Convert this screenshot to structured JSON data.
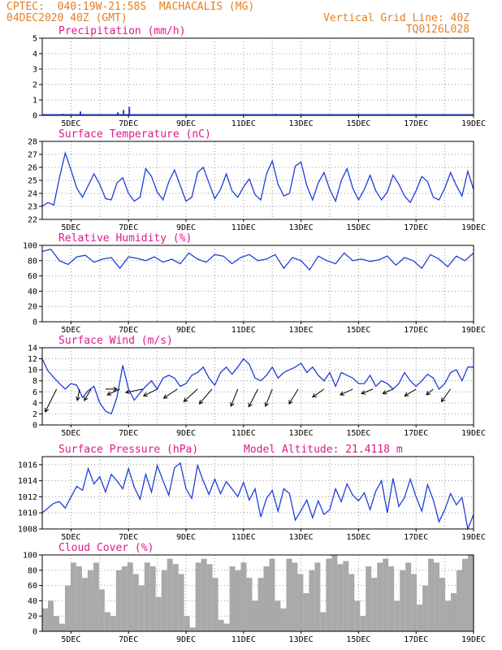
{
  "header": {
    "left1": "CPTEC:  040:19W-21:58S  MACHACALIS (MG)",
    "left2": "04DEC2020 40Z (GMT)",
    "right1": "Vertical Grid Line: 40Z",
    "right2": "TQ0126L028"
  },
  "colors": {
    "header": "#e67e22",
    "title": "#e0188a",
    "line": "#1f3fd8",
    "cloud": "#a9a9a9"
  },
  "x_labels": [
    "5DEC",
    "7DEC",
    "9DEC",
    "11DEC",
    "13DEC",
    "15DEC",
    "17DEC",
    "19DEC"
  ],
  "chart_data": [
    {
      "type": "bar",
      "title": "Precipitation (mm/h)",
      "ylim": [
        0,
        5
      ],
      "yticks": [
        "0",
        "1",
        "2",
        "3",
        "4",
        "5"
      ],
      "x_range": [
        "04DEC",
        "19DEC"
      ],
      "x": [
        4.7,
        5.3,
        6.6,
        6.8,
        7.0,
        12.1
      ],
      "values": [
        0.1,
        0.25,
        0.2,
        0.35,
        0.55,
        0.1
      ]
    },
    {
      "type": "line",
      "title": "Surface Temperature (nC)",
      "ylim": [
        22,
        28
      ],
      "yticks": [
        "22",
        "23",
        "24",
        "25",
        "26",
        "27",
        "28"
      ],
      "x": [
        4.0,
        4.2,
        4.4,
        4.6,
        4.8,
        5.0,
        5.2,
        5.4,
        5.6,
        5.8,
        6.0,
        6.2,
        6.4,
        6.6,
        6.8,
        7.0,
        7.2,
        7.4,
        7.6,
        7.8,
        8.0,
        8.2,
        8.4,
        8.6,
        8.8,
        9.0,
        9.2,
        9.4,
        9.6,
        9.8,
        10.0,
        10.2,
        10.4,
        10.6,
        10.8,
        11.0,
        11.2,
        11.4,
        11.6,
        11.8,
        12.0,
        12.2,
        12.4,
        12.6,
        12.8,
        13.0,
        13.2,
        13.4,
        13.6,
        13.8,
        14.0,
        14.2,
        14.4,
        14.6,
        14.8,
        15.0,
        15.2,
        15.4,
        15.6,
        15.8,
        16.0,
        16.2,
        16.4,
        16.6,
        16.8,
        17.0,
        17.2,
        17.4,
        17.6,
        17.8,
        18.0,
        18.2,
        18.4,
        18.6,
        18.8,
        19.0
      ],
      "values": [
        23.0,
        23.3,
        23.1,
        25.2,
        27.1,
        25.8,
        24.4,
        23.7,
        24.6,
        25.5,
        24.7,
        23.6,
        23.5,
        24.8,
        25.2,
        24.0,
        23.4,
        23.7,
        25.9,
        25.3,
        24.1,
        23.5,
        24.9,
        25.8,
        24.6,
        23.4,
        23.7,
        25.6,
        26.0,
        24.8,
        23.6,
        24.3,
        25.5,
        24.2,
        23.7,
        24.5,
        25.1,
        23.9,
        23.5,
        25.5,
        26.5,
        24.7,
        23.8,
        24.0,
        26.1,
        26.4,
        24.6,
        23.5,
        24.8,
        25.6,
        24.3,
        23.4,
        25.0,
        25.9,
        24.4,
        23.5,
        24.3,
        25.4,
        24.2,
        23.5,
        24.1,
        25.4,
        24.7,
        23.8,
        23.3,
        24.2,
        25.3,
        24.9,
        23.7,
        23.5,
        24.4,
        25.6,
        24.6,
        23.8,
        25.7,
        24.3
      ]
    },
    {
      "type": "line",
      "title": "Relative Humidity (%)",
      "ylim": [
        0,
        100
      ],
      "yticks": [
        "0",
        "20",
        "40",
        "60",
        "80",
        "100"
      ],
      "x": [
        4.0,
        4.3,
        4.6,
        4.9,
        5.2,
        5.5,
        5.8,
        6.1,
        6.4,
        6.7,
        7.0,
        7.3,
        7.6,
        7.9,
        8.2,
        8.5,
        8.8,
        9.1,
        9.4,
        9.7,
        10.0,
        10.3,
        10.6,
        10.9,
        11.2,
        11.5,
        11.8,
        12.1,
        12.4,
        12.7,
        13.0,
        13.3,
        13.6,
        13.9,
        14.2,
        14.5,
        14.8,
        15.1,
        15.4,
        15.7,
        16.0,
        16.3,
        16.6,
        16.9,
        17.2,
        17.5,
        17.8,
        18.1,
        18.4,
        18.7,
        19.0
      ],
      "values": [
        92,
        95,
        80,
        75,
        85,
        87,
        78,
        82,
        84,
        70,
        85,
        83,
        80,
        85,
        78,
        82,
        76,
        90,
        82,
        78,
        88,
        86,
        76,
        84,
        88,
        80,
        82,
        88,
        70,
        84,
        80,
        68,
        86,
        80,
        76,
        90,
        80,
        82,
        79,
        81,
        86,
        74,
        84,
        80,
        70,
        88,
        82,
        72,
        86,
        80,
        90
      ]
    },
    {
      "type": "line",
      "title": "Surface Wind (m/s)",
      "ylim": [
        0,
        14
      ],
      "yticks": [
        "0",
        "2",
        "4",
        "6",
        "8",
        "10",
        "12",
        "14"
      ],
      "x": [
        4.0,
        4.2,
        4.4,
        4.6,
        4.8,
        5.0,
        5.2,
        5.4,
        5.6,
        5.8,
        6.0,
        6.2,
        6.4,
        6.6,
        6.8,
        7.0,
        7.2,
        7.4,
        7.6,
        7.8,
        8.0,
        8.2,
        8.4,
        8.6,
        8.8,
        9.0,
        9.2,
        9.4,
        9.6,
        9.8,
        10.0,
        10.2,
        10.4,
        10.6,
        10.8,
        11.0,
        11.2,
        11.4,
        11.6,
        11.8,
        12.0,
        12.2,
        12.4,
        12.6,
        12.8,
        13.0,
        13.2,
        13.4,
        13.6,
        13.8,
        14.0,
        14.2,
        14.4,
        14.6,
        14.8,
        15.0,
        15.2,
        15.4,
        15.6,
        15.8,
        16.0,
        16.2,
        16.4,
        16.6,
        16.8,
        17.0,
        17.2,
        17.4,
        17.6,
        17.8,
        18.0,
        18.2,
        18.4,
        18.6,
        18.8,
        19.0
      ],
      "values": [
        12.0,
        9.8,
        8.6,
        7.5,
        6.5,
        7.5,
        7.2,
        5.0,
        6.2,
        7.0,
        4.0,
        2.5,
        2.0,
        5.0,
        10.8,
        6.5,
        4.5,
        5.8,
        7.0,
        8.0,
        6.5,
        8.5,
        9.0,
        8.5,
        7.0,
        7.5,
        9.0,
        9.5,
        10.5,
        8.5,
        7.2,
        9.5,
        10.5,
        9.2,
        10.5,
        12.0,
        11.0,
        8.5,
        8.0,
        9.0,
        10.5,
        8.5,
        9.5,
        10.0,
        10.5,
        11.2,
        9.5,
        10.5,
        9.0,
        8.0,
        9.5,
        7.0,
        9.5,
        9.0,
        8.5,
        7.5,
        7.5,
        9.0,
        7.0,
        8.0,
        7.5,
        6.5,
        7.5,
        9.5,
        8.0,
        7.0,
        8.0,
        9.2,
        8.5,
        6.5,
        7.5,
        9.5,
        10.0,
        8.0,
        10.5,
        10.5
      ]
    },
    {
      "type": "line",
      "title": "Surface Pressure (hPa)",
      "annotation": "Model Altitude: 21.4118 m",
      "ylim": [
        1008,
        1017
      ],
      "yticks": [
        "1008",
        "1010",
        "1012",
        "1014",
        "1016"
      ],
      "x": [
        4.0,
        4.2,
        4.4,
        4.6,
        4.8,
        5.0,
        5.2,
        5.4,
        5.6,
        5.8,
        6.0,
        6.2,
        6.4,
        6.6,
        6.8,
        7.0,
        7.2,
        7.4,
        7.6,
        7.8,
        8.0,
        8.2,
        8.4,
        8.6,
        8.8,
        9.0,
        9.2,
        9.4,
        9.6,
        9.8,
        10.0,
        10.2,
        10.4,
        10.6,
        10.8,
        11.0,
        11.2,
        11.4,
        11.6,
        11.8,
        12.0,
        12.2,
        12.4,
        12.6,
        12.8,
        13.0,
        13.2,
        13.4,
        13.6,
        13.8,
        14.0,
        14.2,
        14.4,
        14.6,
        14.8,
        15.0,
        15.2,
        15.4,
        15.6,
        15.8,
        16.0,
        16.2,
        16.4,
        16.6,
        16.8,
        17.0,
        17.2,
        17.4,
        17.6,
        17.8,
        18.0,
        18.2,
        18.4,
        18.6,
        18.8,
        19.0
      ],
      "values": [
        1010.0,
        1010.6,
        1011.2,
        1011.4,
        1010.6,
        1012.0,
        1013.3,
        1012.8,
        1015.5,
        1013.6,
        1014.5,
        1012.6,
        1014.8,
        1014.0,
        1013.0,
        1015.5,
        1013.2,
        1011.7,
        1014.8,
        1012.6,
        1015.9,
        1014.0,
        1012.2,
        1015.6,
        1016.2,
        1013.0,
        1011.8,
        1015.9,
        1014.0,
        1012.3,
        1014.2,
        1012.4,
        1013.9,
        1013.0,
        1012.0,
        1013.8,
        1011.6,
        1013.0,
        1009.5,
        1011.8,
        1012.8,
        1010.2,
        1013.0,
        1012.4,
        1009.1,
        1010.3,
        1011.6,
        1009.4,
        1011.5,
        1009.8,
        1010.4,
        1013.0,
        1011.4,
        1013.6,
        1012.2,
        1011.5,
        1012.5,
        1010.4,
        1012.7,
        1014.0,
        1010.0,
        1014.3,
        1010.8,
        1011.9,
        1014.2,
        1012.0,
        1010.2,
        1013.5,
        1011.6,
        1008.9,
        1010.4,
        1012.4,
        1011.0,
        1011.9,
        1008.0,
        1009.8
      ]
    },
    {
      "type": "bar",
      "title": "Cloud Cover (%)",
      "ylim": [
        0,
        100
      ],
      "yticks": [
        "0",
        "20",
        "40",
        "60",
        "80",
        "100"
      ],
      "x": [
        4.0,
        4.2,
        4.4,
        4.6,
        4.8,
        5.0,
        5.2,
        5.4,
        5.6,
        5.8,
        6.0,
        6.2,
        6.4,
        6.6,
        6.8,
        7.0,
        7.2,
        7.4,
        7.6,
        7.8,
        8.0,
        8.2,
        8.4,
        8.6,
        8.8,
        9.0,
        9.2,
        9.4,
        9.6,
        9.8,
        10.0,
        10.2,
        10.4,
        10.6,
        10.8,
        11.0,
        11.2,
        11.4,
        11.6,
        11.8,
        12.0,
        12.2,
        12.4,
        12.6,
        12.8,
        13.0,
        13.2,
        13.4,
        13.6,
        13.8,
        14.0,
        14.2,
        14.4,
        14.6,
        14.8,
        15.0,
        15.2,
        15.4,
        15.6,
        15.8,
        16.0,
        16.2,
        16.4,
        16.6,
        16.8,
        17.0,
        17.2,
        17.4,
        17.6,
        17.8,
        18.0,
        18.2,
        18.4,
        18.6,
        18.8,
        19.0
      ],
      "values": [
        30,
        40,
        20,
        10,
        60,
        90,
        85,
        70,
        80,
        90,
        55,
        25,
        20,
        80,
        85,
        90,
        75,
        60,
        90,
        85,
        45,
        80,
        95,
        88,
        75,
        20,
        5,
        90,
        95,
        88,
        70,
        15,
        10,
        85,
        80,
        90,
        70,
        40,
        70,
        85,
        95,
        40,
        30,
        95,
        90,
        75,
        50,
        80,
        90,
        25,
        95,
        100,
        88,
        92,
        75,
        40,
        20,
        85,
        70,
        90,
        95,
        85,
        40,
        80,
        90,
        75,
        35,
        60,
        95,
        90,
        70,
        40,
        50,
        80,
        95,
        100
      ]
    }
  ],
  "wind_vectors": {
    "x": [
      4.5,
      5.3,
      5.7,
      6.2,
      6.7,
      7.5,
      8.0,
      8.7,
      9.4,
      9.9,
      10.8,
      11.5,
      12.0,
      12.9,
      13.8,
      14.8,
      15.5,
      16.2,
      17.0,
      17.6,
      18.2
    ],
    "dx": [
      -1,
      -0.2,
      -0.6,
      1.0,
      -1.1,
      -1.5,
      -1.2,
      -1.2,
      -1.2,
      -1.1,
      -0.6,
      -0.8,
      -0.6,
      -0.8,
      -1.0,
      -1.1,
      -1.0,
      -0.9,
      -1.0,
      -0.6,
      -0.8
    ],
    "dy": [
      -4,
      -2,
      -2,
      0,
      -1,
      -0.6,
      -1.2,
      -1.6,
      -2.2,
      -2.6,
      -3.0,
      -3.1,
      -3.0,
      -2.6,
      -1.4,
      -1.0,
      -0.8,
      -0.8,
      -1.2,
      -1.0,
      -2.2
    ]
  }
}
